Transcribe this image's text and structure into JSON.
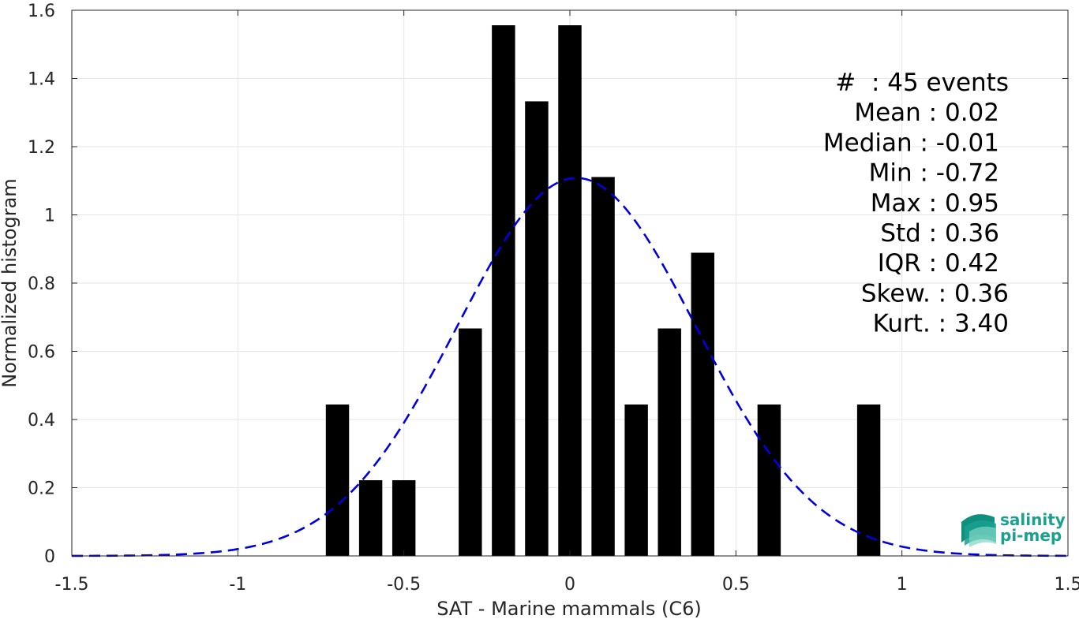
{
  "chart_data": {
    "type": "bar",
    "xlabel": "SAT - Marine mammals (C6)",
    "ylabel": "Normalized histogram",
    "xlim": [
      -1.5,
      1.5
    ],
    "ylim": [
      0,
      1.6
    ],
    "xticks": [
      -1.5,
      -1,
      -0.5,
      0,
      0.5,
      1,
      1.5
    ],
    "xtick_labels": [
      "-1.5",
      "-1",
      "-0.5",
      "0",
      "0.5",
      "1",
      "1.5"
    ],
    "yticks": [
      0,
      0.2,
      0.4,
      0.6,
      0.8,
      1,
      1.2,
      1.4,
      1.6
    ],
    "ytick_labels": [
      "0",
      "0.2",
      "0.4",
      "0.6",
      "0.8",
      "1",
      "1.2",
      "1.4",
      "1.6"
    ],
    "grid": true,
    "bar_color": "#000000",
    "bar_width": 0.07,
    "bars": {
      "x": [
        -0.7,
        -0.6,
        -0.5,
        -0.3,
        -0.2,
        -0.1,
        0.0,
        0.1,
        0.2,
        0.3,
        0.4,
        0.6,
        0.9
      ],
      "values": [
        0.444,
        0.222,
        0.222,
        0.667,
        1.556,
        1.333,
        1.556,
        1.111,
        0.444,
        0.667,
        0.889,
        0.444,
        0.444
      ]
    },
    "fit_curve": {
      "style": "dashed",
      "color": "#0000e0",
      "distribution": "normal",
      "mean": 0.02,
      "std": 0.36,
      "x_range": [
        -1.5,
        1.5
      ]
    },
    "annotations": [
      "#  : 45 events",
      "Mean : 0.02",
      "Median : -0.01",
      "Min : -0.72",
      "Max : 0.95",
      "Std : 0.36",
      "IQR : 0.42",
      "Skew. : 0.36",
      "Kurt. : 3.40"
    ]
  },
  "logo": {
    "line1": "salinity",
    "line2": "pi-mep",
    "colors": [
      "#0f8f7e",
      "#1aa08f",
      "#7fd6c4"
    ]
  }
}
